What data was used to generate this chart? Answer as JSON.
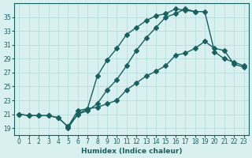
{
  "xlabel": "Humidex (Indice chaleur)",
  "ylabel": "",
  "bg_color": "#d8f0f0",
  "line_color": "#1a6060",
  "grid_color": "#b0d8d8",
  "xlim": [
    -0.5,
    23.5
  ],
  "ylim": [
    18,
    37
  ],
  "yticks": [
    19,
    21,
    23,
    25,
    27,
    29,
    31,
    33,
    35
  ],
  "xticks": [
    0,
    1,
    2,
    3,
    4,
    5,
    6,
    7,
    8,
    9,
    10,
    11,
    12,
    13,
    14,
    15,
    16,
    17,
    18,
    19,
    20,
    21,
    22,
    23
  ],
  "line1_x": [
    0,
    1,
    2,
    3,
    4,
    5,
    6,
    7,
    8,
    9,
    10,
    11,
    12,
    13,
    14,
    15,
    16,
    17,
    18
  ],
  "line1_y": [
    21,
    20.8,
    20.8,
    20.8,
    20.5,
    19.2,
    21.5,
    21.8,
    26.5,
    28.8,
    30.5,
    32.5,
    33.5,
    34.5,
    35.2,
    35.5,
    36.2,
    36.0,
    35.8
  ],
  "line2_x": [
    0,
    1,
    2,
    3,
    4,
    5,
    6,
    7,
    8,
    9,
    10,
    11,
    12,
    13,
    14,
    15,
    16,
    17,
    18,
    19,
    20,
    21,
    22,
    23
  ],
  "line2_y": [
    21,
    20.8,
    20.8,
    20.8,
    20.5,
    19.2,
    21.0,
    21.8,
    22.0,
    22.5,
    23.0,
    24.5,
    25.5,
    26.5,
    27.2,
    28.0,
    29.5,
    29.8,
    30.5,
    31.5,
    30.5,
    30.2,
    28.2,
    27.8
  ],
  "line3_x": [
    5,
    6,
    7,
    8,
    9,
    10,
    11,
    12,
    13,
    14,
    15,
    16,
    17,
    18,
    19,
    20,
    21,
    22,
    23
  ],
  "line3_y": [
    19.0,
    21.0,
    21.5,
    22.5,
    24.5,
    26.0,
    28.0,
    30.2,
    32.0,
    33.5,
    35.0,
    35.5,
    36.2,
    35.8,
    35.8,
    30.0,
    29.0,
    28.5,
    28.0
  ]
}
